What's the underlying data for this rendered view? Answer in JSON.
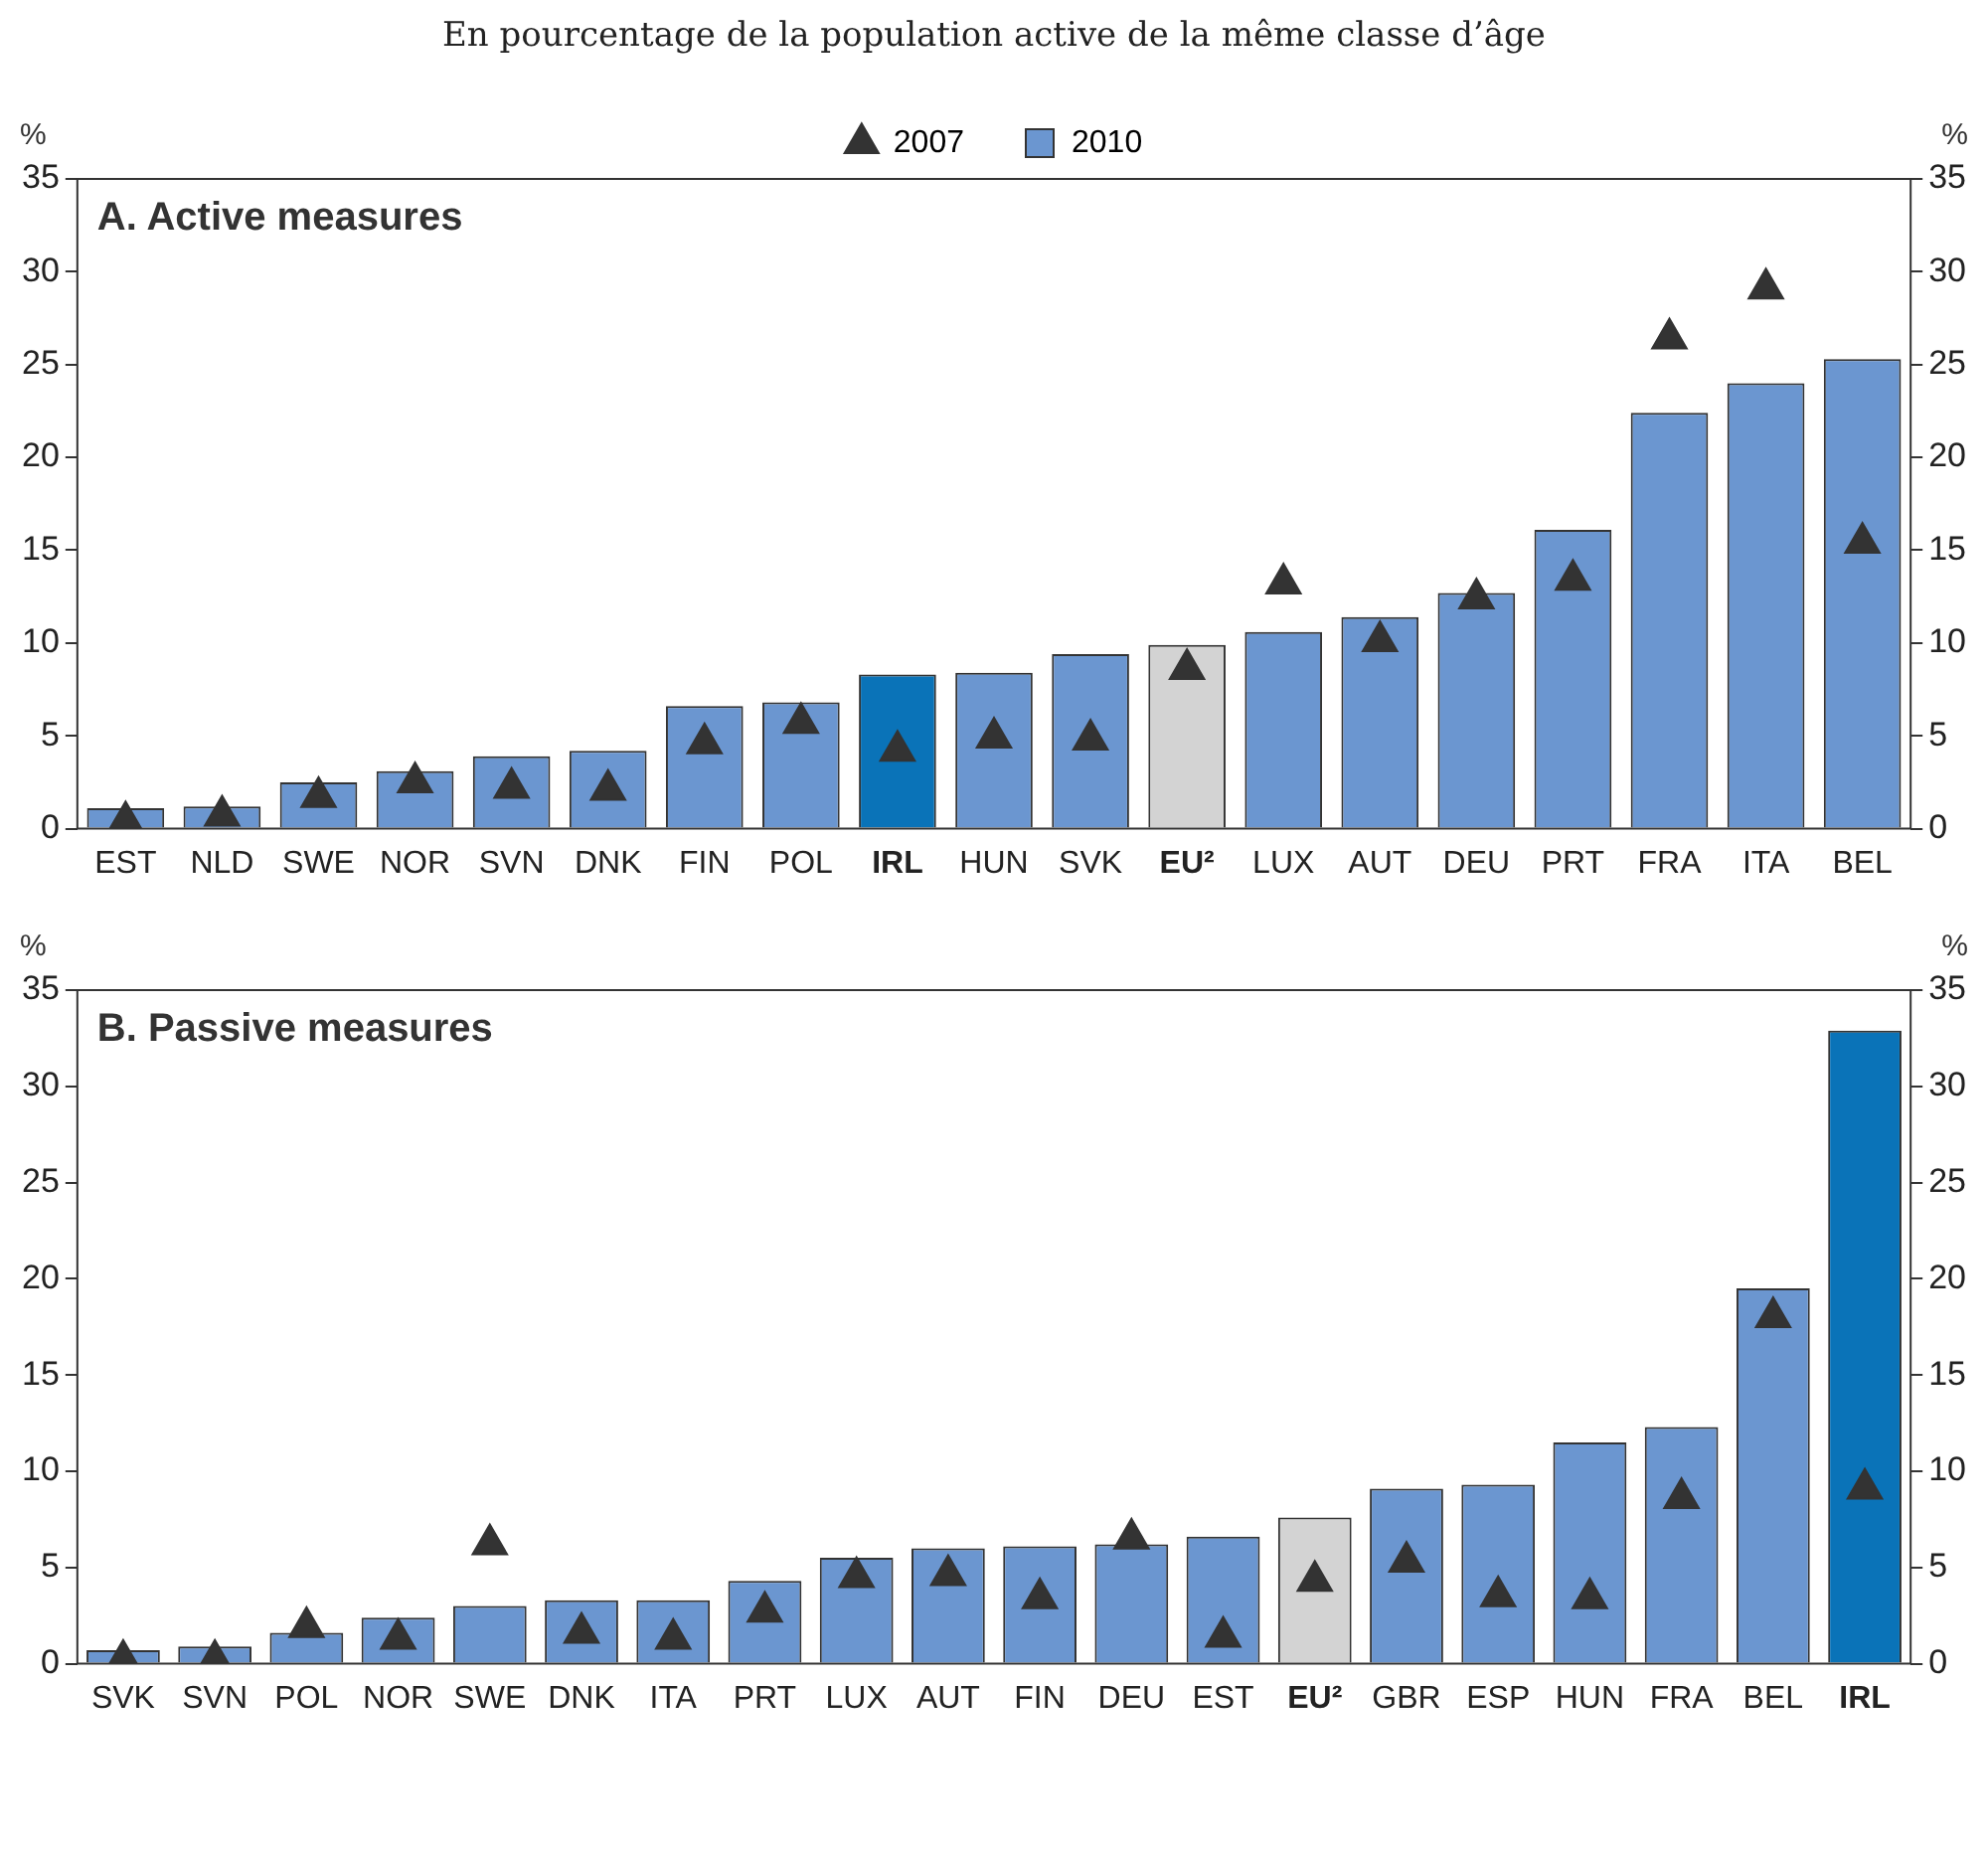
{
  "chart_data": [
    {
      "type": "bar",
      "subtitle": "En pourcentage de la population active de la même classe d’âge",
      "annotations": [
        "A. Active measures"
      ],
      "ylabel": "%",
      "y2label": "%",
      "categories": [
        "EST",
        "NLD",
        "SWE",
        "NOR",
        "SVN",
        "DNK",
        "FIN",
        "POL",
        "IRL",
        "HUN",
        "SVK",
        "EU²",
        "LUX",
        "AUT",
        "DEU",
        "PRT",
        "FRA",
        "ITA",
        "BEL"
      ],
      "ylim": [
        0,
        35
      ],
      "yticks": [
        0,
        5,
        10,
        15,
        20,
        25,
        30,
        35
      ],
      "y2lim": [
        0,
        35
      ],
      "y2ticks": [
        0,
        5,
        10,
        15,
        20,
        25,
        30,
        35
      ],
      "grid": false,
      "legend": "top",
      "series": [
        {
          "name": "2010",
          "color": "#6b96d0",
          "colors": [
            "#6b96d0",
            "#6b96d0",
            "#6b96d0",
            "#6b96d0",
            "#6b96d0",
            "#6b96d0",
            "#6b96d0",
            "#6b96d0",
            "#0a73b8",
            "#6b96d0",
            "#6b96d0",
            "#d3d3d3",
            "#6b96d0",
            "#6b96d0",
            "#6b96d0",
            "#6b96d0",
            "#6b96d0",
            "#6b96d0",
            "#6b96d0"
          ],
          "values": [
            1.1,
            1.2,
            2.5,
            3.1,
            3.9,
            4.2,
            6.6,
            6.8,
            8.3,
            8.4,
            9.4,
            9.9,
            10.6,
            11.4,
            12.7,
            16.1,
            22.4,
            24.0,
            25.3
          ]
        },
        {
          "name": "2007",
          "type": "scatter",
          "marker": "triangle",
          "color": "#333333",
          "values": [
            0.4,
            0.7,
            1.7,
            2.5,
            2.2,
            2.1,
            4.6,
            5.7,
            4.2,
            4.9,
            4.8,
            8.6,
            13.2,
            10.1,
            12.4,
            13.4,
            26.4,
            29.1,
            15.4
          ]
        }
      ]
    },
    {
      "type": "bar",
      "annotations": [
        "B. Passive measures"
      ],
      "ylabel": "%",
      "y2label": "%",
      "categories": [
        "SVK",
        "SVN",
        "POL",
        "NOR",
        "SWE",
        "DNK",
        "ITA",
        "PRT",
        "LUX",
        "AUT",
        "FIN",
        "DEU",
        "EST",
        "EU²",
        "GBR",
        "ESP",
        "HUN",
        "FRA",
        "BEL",
        "IRL"
      ],
      "ylim": [
        0,
        35
      ],
      "yticks": [
        0,
        5,
        10,
        15,
        20,
        25,
        30,
        35
      ],
      "y2lim": [
        0,
        35
      ],
      "y2ticks": [
        0,
        5,
        10,
        15,
        20,
        25,
        30,
        35
      ],
      "grid": false,
      "series": [
        {
          "color": "#6b96d0",
          "colors": [
            "#6b96d0",
            "#6b96d0",
            "#6b96d0",
            "#6b96d0",
            "#6b96d0",
            "#6b96d0",
            "#6b96d0",
            "#6b96d0",
            "#6b96d0",
            "#6b96d0",
            "#6b96d0",
            "#6b96d0",
            "#6b96d0",
            "#d3d3d3",
            "#6b96d0",
            "#6b96d0",
            "#6b96d0",
            "#6b96d0",
            "#6b96d0",
            "#0a73b8"
          ],
          "values": [
            0.7,
            0.9,
            1.6,
            2.4,
            3.0,
            3.3,
            3.3,
            4.3,
            5.5,
            6.0,
            6.1,
            6.2,
            6.6,
            7.6,
            9.1,
            9.3,
            11.5,
            12.3,
            19.5,
            32.9
          ]
        },
        {
          "type": "scatter",
          "marker": "triangle",
          "color": "#333333",
          "values": [
            0.2,
            0.2,
            1.9,
            1.3,
            6.2,
            1.6,
            1.3,
            2.7,
            4.5,
            4.6,
            3.4,
            6.5,
            1.4,
            4.3,
            5.3,
            3.5,
            3.4,
            8.6,
            18.0,
            9.1
          ]
        }
      ]
    }
  ]
}
